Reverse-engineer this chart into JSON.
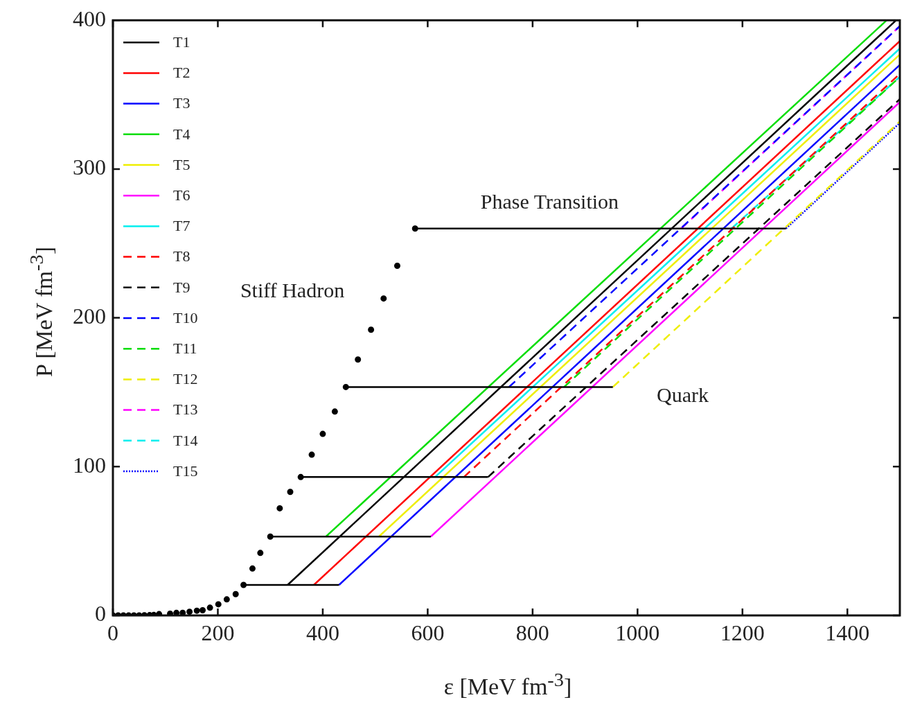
{
  "chart_data": {
    "type": "line",
    "xlabel": "ε [MeV fm$^{-3}$]",
    "ylabel": "P [MeV fm$^{-3}$]",
    "xlim": [
      0,
      1500
    ],
    "ylim": [
      0,
      400
    ],
    "xticks": [
      0,
      200,
      400,
      600,
      800,
      1000,
      1200,
      1400
    ],
    "yticks": [
      0,
      100,
      200,
      300,
      400
    ],
    "legend": "top left",
    "annotations": [
      "Phase Transition",
      "Stiff Hadron",
      "Quark"
    ],
    "series": [
      {
        "type": "scatter",
        "marker": "circle",
        "color": "#000000",
        "x": [
          0,
          10,
          20,
          30,
          40,
          50,
          60,
          70,
          78,
          88,
          109,
          121,
          133,
          146,
          160,
          171,
          185,
          201,
          217,
          234,
          249,
          266,
          281,
          300,
          318,
          338,
          358,
          379,
          400,
          423,
          444,
          467,
          492,
          516,
          542,
          576
        ],
        "values": [
          0,
          0,
          0,
          0,
          0,
          0,
          0.1,
          0.2,
          0.3,
          0.9,
          1.2,
          1.7,
          1.8,
          2.5,
          3.2,
          3.5,
          5.2,
          7.5,
          10.8,
          14.3,
          20.5,
          31.5,
          42,
          53,
          72,
          83,
          93,
          108,
          122,
          137,
          153.5,
          172,
          192,
          213,
          235,
          260
        ]
      },
      {
        "type": "line",
        "color": "#000000",
        "line_style": "solid",
        "x": [
          249,
          431
        ],
        "values": [
          20.5,
          20.5
        ]
      },
      {
        "type": "line",
        "color": "#000000",
        "line_style": "solid",
        "x": [
          300,
          606
        ],
        "values": [
          53,
          53
        ]
      },
      {
        "type": "line",
        "color": "#000000",
        "line_style": "solid",
        "x": [
          358,
          715
        ],
        "values": [
          93,
          93
        ]
      },
      {
        "type": "line",
        "color": "#000000",
        "line_style": "solid",
        "x": [
          444,
          953
        ],
        "values": [
          153.5,
          153.5
        ]
      },
      {
        "type": "line",
        "color": "#000000",
        "line_style": "solid",
        "x": [
          576,
          1283
        ],
        "values": [
          260,
          260
        ]
      },
      {
        "name": "T1",
        "color": "#000000",
        "line_style": "solid",
        "x": [
          333,
          1493
        ],
        "values": [
          20.5,
          400
        ]
      },
      {
        "name": "T2",
        "color": "#ff0000",
        "line_style": "solid",
        "x": [
          383,
          1500
        ],
        "values": [
          20.5,
          386
        ]
      },
      {
        "name": "T3",
        "color": "#0000ff",
        "line_style": "solid",
        "x": [
          431,
          1500
        ],
        "values": [
          20.5,
          370
        ]
      },
      {
        "name": "T4",
        "color": "#00dd00",
        "line_style": "solid",
        "x": [
          406,
          1475
        ],
        "values": [
          53,
          400
        ]
      },
      {
        "name": "T5",
        "color": "#eeee00",
        "line_style": "solid",
        "x": [
          507,
          1500
        ],
        "values": [
          53,
          377
        ]
      },
      {
        "name": "T6",
        "color": "#ff00ff",
        "line_style": "solid",
        "x": [
          606,
          1500
        ],
        "values": [
          53,
          345
        ]
      },
      {
        "name": "T7",
        "color": "#00eeee",
        "line_style": "solid",
        "x": [
          614,
          1500
        ],
        "values": [
          93,
          381
        ]
      },
      {
        "name": "T8",
        "color": "#ff0000",
        "line_style": "dashed",
        "x": [
          669,
          1500
        ],
        "values": [
          93,
          364
        ]
      },
      {
        "name": "T9",
        "color": "#000000",
        "line_style": "dashed",
        "x": [
          715,
          1500
        ],
        "values": [
          93,
          347
        ]
      },
      {
        "name": "T10",
        "color": "#0000ff",
        "line_style": "dashed",
        "x": [
          755,
          1500
        ],
        "values": [
          153.5,
          396
        ]
      },
      {
        "name": "T11",
        "color": "#00dd00",
        "line_style": "dashed",
        "x": [
          860,
          1500
        ],
        "values": [
          153.5,
          362
        ]
      },
      {
        "name": "T12",
        "color": "#eeee00",
        "line_style": "dashed",
        "x": [
          953,
          1500
        ],
        "values": [
          153.5,
          332
        ]
      },
      {
        "name": "T13",
        "color": "#ff00ff",
        "line_style": "dashed",
        "x": [
          1083,
          1500
        ],
        "values": [
          260,
          396
        ]
      },
      {
        "name": "T14",
        "color": "#00eeee",
        "line_style": "dashed",
        "x": [
          1179,
          1500
        ],
        "values": [
          260,
          362
        ]
      },
      {
        "name": "T15",
        "color": "#0000ff",
        "line_style": "dotted",
        "x": [
          1283,
          1500
        ],
        "values": [
          260,
          331
        ]
      }
    ]
  }
}
